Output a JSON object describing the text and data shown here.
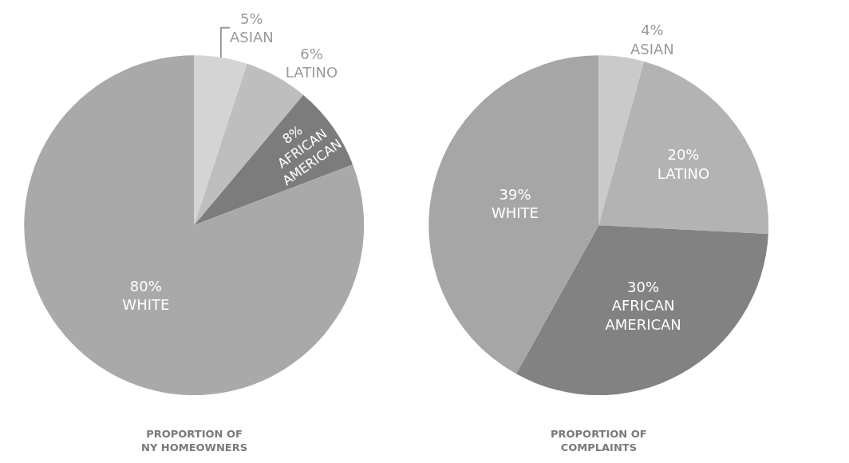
{
  "chart_data": [
    {
      "type": "pie",
      "title": "PROPORTION OF\nNY HOMEOWNERS",
      "categories": [
        "ASIAN",
        "LATINO",
        "AFRICAN\nAMERICAN",
        "WHITE"
      ],
      "values": [
        5,
        6,
        8,
        80
      ],
      "value_labels": [
        "5%",
        "6%",
        "8%",
        "80%"
      ],
      "colors": [
        "#d4d4d4",
        "#bebebe",
        "#7c7c7c",
        "#a9a9a9"
      ],
      "legend": false
    },
    {
      "type": "pie",
      "title": "PROPORTION OF\nCOMPLAINTS",
      "categories": [
        "ASIAN",
        "LATINO",
        "AFRICAN\nAMERICAN",
        "WHITE"
      ],
      "values": [
        4,
        20,
        30,
        39
      ],
      "value_labels": [
        "4%",
        "20%",
        "30%",
        "39%"
      ],
      "colors": [
        "#cacaca",
        "#b3b3b3",
        "#828282",
        "#a6a6a6"
      ],
      "legend": false
    }
  ]
}
